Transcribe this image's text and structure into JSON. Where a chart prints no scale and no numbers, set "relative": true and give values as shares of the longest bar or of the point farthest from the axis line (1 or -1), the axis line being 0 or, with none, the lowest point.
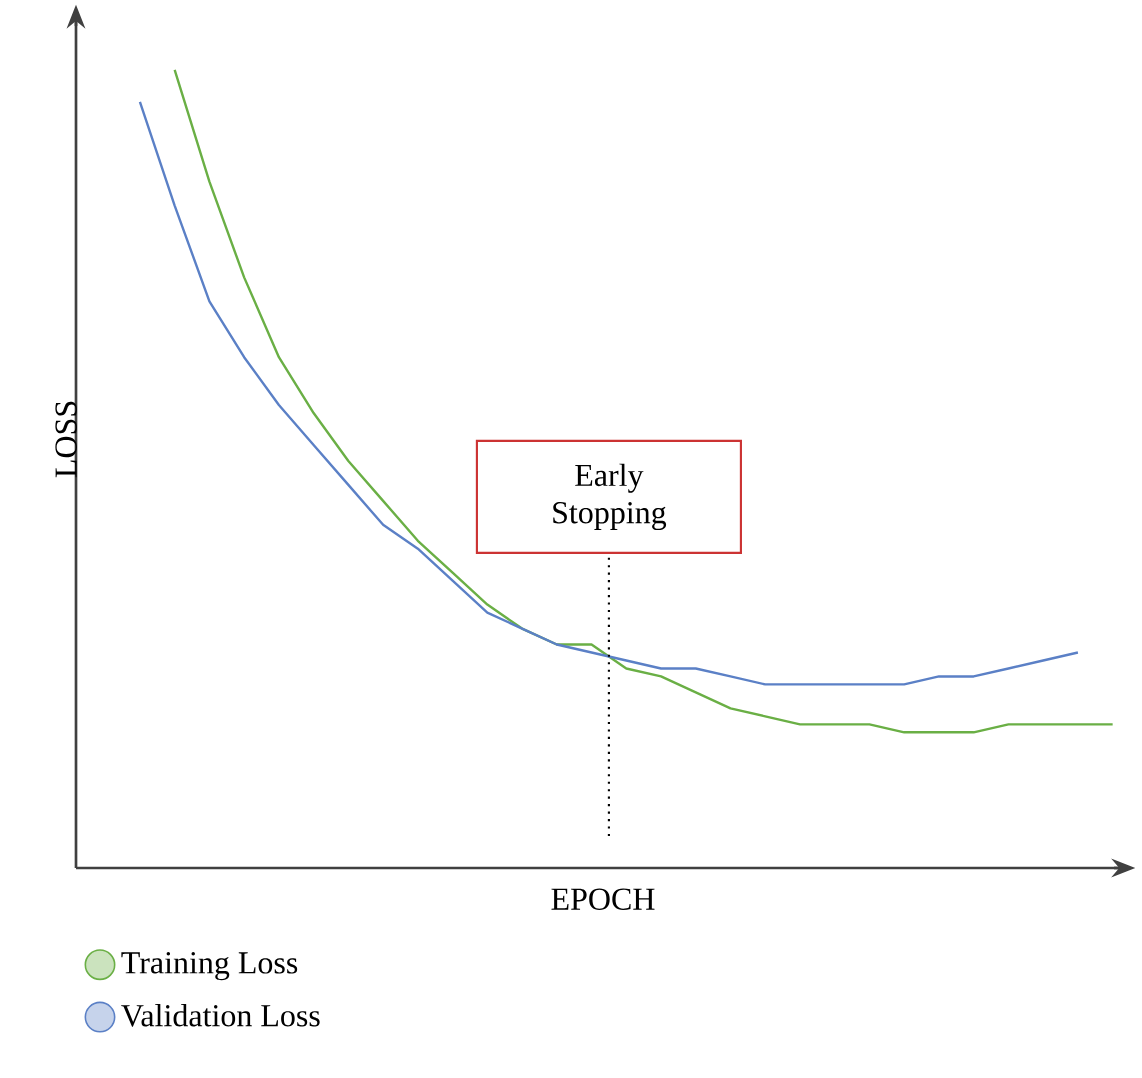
{
  "chart_data": {
    "type": "line",
    "relative": true,
    "xlabel": "EPOCH",
    "ylabel": "LOSS",
    "categories": [
      null,
      null,
      null,
      null,
      null,
      null,
      null,
      null,
      null,
      null,
      null,
      null,
      null,
      null,
      null,
      null,
      null,
      null,
      null,
      null,
      null,
      null,
      null,
      null,
      null,
      null,
      null,
      null,
      null
    ],
    "series": [
      {
        "name": "Training Loss",
        "color": "#6aaf45",
        "values": [
          null,
          1.0,
          0.86,
          0.74,
          0.64,
          0.57,
          0.51,
          0.46,
          0.41,
          0.37,
          0.33,
          0.3,
          0.28,
          0.28,
          0.25,
          0.24,
          0.22,
          0.2,
          0.19,
          0.18,
          0.18,
          0.18,
          0.17,
          0.17,
          0.17,
          0.18,
          0.18,
          0.18,
          0.18
        ]
      },
      {
        "name": "Validation Loss",
        "color": "#5b80c6",
        "values": [
          0.96,
          0.83,
          0.71,
          0.64,
          0.58,
          0.53,
          0.48,
          0.43,
          0.4,
          0.36,
          0.32,
          0.3,
          0.28,
          0.27,
          0.26,
          0.25,
          0.25,
          0.24,
          0.23,
          0.23,
          0.23,
          0.23,
          0.23,
          0.24,
          0.24,
          0.25,
          0.26,
          0.27,
          null
        ]
      }
    ],
    "annotations": [
      "Early Stopping"
    ],
    "legend": "bottom",
    "marker": "none",
    "line_style": "solid"
  }
}
